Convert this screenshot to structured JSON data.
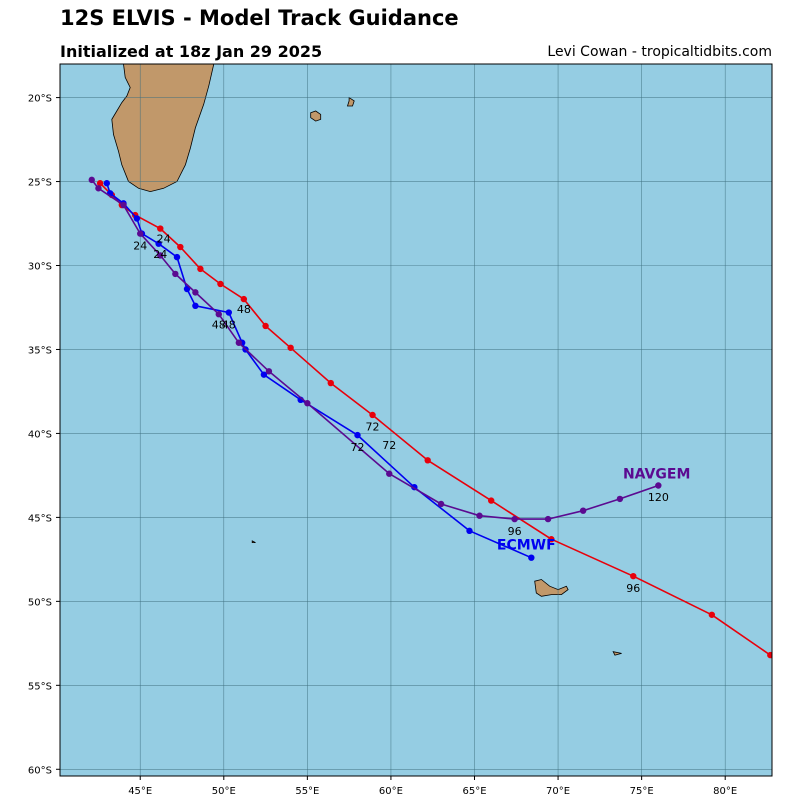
{
  "header": {
    "title": "12S ELVIS - Model Track Guidance",
    "subtitle": "Initialized at 18z Jan 29 2025",
    "credit": "Levi Cowan - tropicaltidbits.com"
  },
  "colors": {
    "ocean": "#95cde3",
    "land": "#c1986a",
    "grid": "#3f6f7f",
    "red_track": "#e8000b",
    "blue_track": "#0000f0",
    "purple_track": "#5b0a91"
  },
  "chart_data": {
    "type": "map",
    "projection": "equirectangular",
    "xlim": [
      40.2,
      82.8
    ],
    "ylim": [
      -60.4,
      -18.0
    ],
    "x_ticks": [
      45,
      50,
      55,
      60,
      65,
      70,
      75,
      80
    ],
    "x_tick_labels": [
      "45°E",
      "50°E",
      "55°E",
      "60°E",
      "65°E",
      "70°E",
      "75°E",
      "80°E"
    ],
    "y_ticks": [
      -20,
      -25,
      -30,
      -35,
      -40,
      -45,
      -50,
      -55,
      -60
    ],
    "y_tick_labels": [
      "20°S",
      "25°S",
      "30°S",
      "35°S",
      "40°S",
      "45°S",
      "50°S",
      "55°S",
      "60°S"
    ],
    "grid": true,
    "land": [
      {
        "name": "madagascar",
        "points": [
          [
            44.0,
            -18.0
          ],
          [
            49.4,
            -18.0
          ],
          [
            49.1,
            -19.3
          ],
          [
            48.8,
            -20.4
          ],
          [
            48.3,
            -21.8
          ],
          [
            48.0,
            -23.0
          ],
          [
            47.7,
            -24.0
          ],
          [
            47.2,
            -25.0
          ],
          [
            46.4,
            -25.4
          ],
          [
            45.6,
            -25.6
          ],
          [
            44.9,
            -25.4
          ],
          [
            44.3,
            -25.0
          ],
          [
            43.9,
            -24.0
          ],
          [
            43.7,
            -23.2
          ],
          [
            43.4,
            -22.2
          ],
          [
            43.3,
            -21.3
          ],
          [
            43.6,
            -20.8
          ],
          [
            43.9,
            -20.3
          ],
          [
            44.2,
            -19.9
          ],
          [
            44.4,
            -19.4
          ],
          [
            44.1,
            -18.8
          ],
          [
            44.0,
            -18.0
          ]
        ]
      },
      {
        "name": "reunion",
        "points": [
          [
            55.2,
            -20.9
          ],
          [
            55.5,
            -20.8
          ],
          [
            55.8,
            -21.0
          ],
          [
            55.8,
            -21.3
          ],
          [
            55.5,
            -21.4
          ],
          [
            55.2,
            -21.2
          ]
        ]
      },
      {
        "name": "mauritius",
        "points": [
          [
            57.5,
            -20.0
          ],
          [
            57.8,
            -20.2
          ],
          [
            57.7,
            -20.5
          ],
          [
            57.4,
            -20.5
          ],
          [
            57.5,
            -20.2
          ]
        ]
      },
      {
        "name": "kerguelen",
        "points": [
          [
            68.6,
            -48.8
          ],
          [
            69.0,
            -48.7
          ],
          [
            69.5,
            -49.1
          ],
          [
            70.0,
            -49.3
          ],
          [
            70.5,
            -49.1
          ],
          [
            70.6,
            -49.3
          ],
          [
            70.2,
            -49.6
          ],
          [
            69.6,
            -49.6
          ],
          [
            69.0,
            -49.7
          ],
          [
            68.7,
            -49.5
          ]
        ]
      },
      {
        "name": "heard",
        "points": [
          [
            73.3,
            -53.0
          ],
          [
            73.8,
            -53.1
          ],
          [
            73.4,
            -53.2
          ]
        ]
      },
      {
        "name": "crozet",
        "points": [
          [
            51.7,
            -46.4
          ],
          [
            51.9,
            -46.5
          ],
          [
            51.7,
            -46.5
          ]
        ]
      }
    ],
    "series": [
      {
        "color": "#e8000b",
        "points": [
          [
            42.6,
            -25.1
          ],
          [
            43.3,
            -25.8
          ],
          [
            43.9,
            -26.4
          ],
          [
            44.7,
            -27.0
          ],
          [
            46.2,
            -27.8
          ],
          [
            47.4,
            -28.9
          ],
          [
            48.6,
            -30.2
          ],
          [
            49.8,
            -31.1
          ],
          [
            51.2,
            -32.0
          ],
          [
            52.5,
            -33.6
          ],
          [
            54.0,
            -34.9
          ],
          [
            56.4,
            -37.0
          ],
          [
            58.9,
            -38.9
          ],
          [
            62.2,
            -41.6
          ],
          [
            66.0,
            -44.0
          ],
          [
            69.6,
            -46.3
          ],
          [
            74.5,
            -48.5
          ],
          [
            79.2,
            -50.8
          ],
          [
            82.7,
            -53.2
          ]
        ],
        "hour_labels": [
          {
            "hour": "24",
            "lon": 46.4,
            "lat": -28.4
          },
          {
            "hour": "48",
            "lon": 51.2,
            "lat": -32.6
          },
          {
            "hour": "72",
            "lon": 58.9,
            "lat": -39.6
          },
          {
            "hour": "96",
            "lon": 74.5,
            "lat": -49.2
          }
        ]
      },
      {
        "name": "ECMWF",
        "color": "#0000f0",
        "points": [
          [
            43.0,
            -25.1
          ],
          [
            43.2,
            -25.7
          ],
          [
            44.0,
            -26.3
          ],
          [
            44.8,
            -27.2
          ],
          [
            45.1,
            -28.1
          ],
          [
            46.1,
            -28.7
          ],
          [
            47.2,
            -29.5
          ],
          [
            47.8,
            -31.4
          ],
          [
            48.3,
            -32.4
          ],
          [
            50.3,
            -32.8
          ],
          [
            51.1,
            -34.6
          ],
          [
            51.3,
            -35.0
          ],
          [
            52.4,
            -36.5
          ],
          [
            54.6,
            -38.0
          ],
          [
            58.0,
            -40.1
          ],
          [
            61.4,
            -43.2
          ],
          [
            64.7,
            -45.8
          ],
          [
            68.4,
            -47.4
          ]
        ],
        "hour_labels": [
          {
            "hour": "24",
            "lon": 46.2,
            "lat": -29.3
          },
          {
            "hour": "48",
            "lon": 50.3,
            "lat": -33.5
          },
          {
            "hour": "72",
            "lon": 58.0,
            "lat": -40.8
          },
          {
            "hour": "96",
            "lon": 67.4,
            "lat": -45.8
          }
        ],
        "label": {
          "lon": 68.1,
          "lat": -46.6
        }
      },
      {
        "name": "NAVGEM",
        "color": "#5b0a91",
        "points": [
          [
            42.1,
            -24.9
          ],
          [
            42.5,
            -25.4
          ],
          [
            44.0,
            -26.4
          ],
          [
            45.0,
            -28.1
          ],
          [
            46.2,
            -29.4
          ],
          [
            47.1,
            -30.5
          ],
          [
            48.3,
            -31.6
          ],
          [
            49.7,
            -32.9
          ],
          [
            50.9,
            -34.6
          ],
          [
            52.7,
            -36.3
          ],
          [
            55.0,
            -38.2
          ],
          [
            59.9,
            -42.4
          ],
          [
            63.0,
            -44.2
          ],
          [
            65.3,
            -44.9
          ],
          [
            67.4,
            -45.1
          ],
          [
            69.4,
            -45.1
          ],
          [
            71.5,
            -44.6
          ],
          [
            73.7,
            -43.9
          ],
          [
            76.0,
            -43.1
          ]
        ],
        "hour_labels": [
          {
            "hour": "24",
            "lon": 45.0,
            "lat": -28.8
          },
          {
            "hour": "48",
            "lon": 49.7,
            "lat": -33.5
          },
          {
            "hour": "72",
            "lon": 59.9,
            "lat": -40.7
          },
          {
            "hour": "120",
            "lon": 76.0,
            "lat": -43.8
          }
        ],
        "label": {
          "lon": 75.9,
          "lat": -42.4
        }
      }
    ]
  }
}
